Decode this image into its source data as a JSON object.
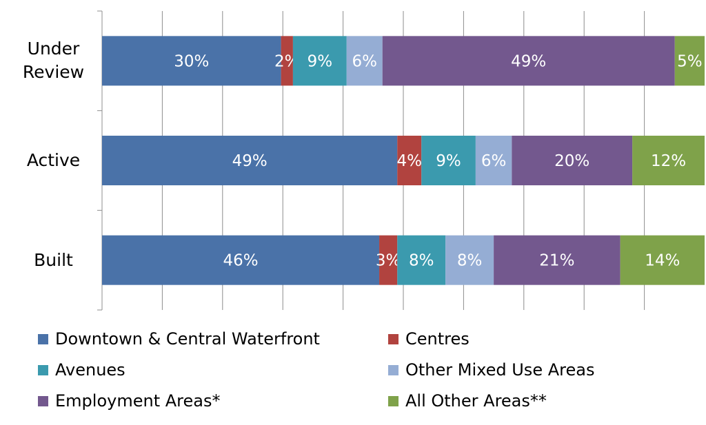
{
  "chart_data": {
    "type": "bar",
    "orientation": "horizontal",
    "stacked": true,
    "percent_stacked": true,
    "categories": [
      "Under\nReview",
      "Active",
      "Built"
    ],
    "xlim": [
      0,
      100
    ],
    "grid": true,
    "legend_position": "bottom",
    "series": [
      {
        "name": "Downtown & Central Waterfront",
        "color": "#4A72A8",
        "values": [
          30,
          49,
          46
        ],
        "labels": [
          "30%",
          "49%",
          "46%"
        ]
      },
      {
        "name": "Centres",
        "color": "#B1433F",
        "values": [
          2,
          4,
          3
        ],
        "labels": [
          "2%",
          "4%",
          "3%"
        ]
      },
      {
        "name": "Avenues",
        "color": "#3B9AAE",
        "values": [
          9,
          9,
          8
        ],
        "labels": [
          "9%",
          "9%",
          "8%"
        ]
      },
      {
        "name": "Other Mixed Use Areas",
        "color": "#95ADD4",
        "values": [
          6,
          6,
          8
        ],
        "labels": [
          "6%",
          "6%",
          "8%"
        ]
      },
      {
        "name": "Employment Areas*",
        "color": "#73588E",
        "values": [
          49,
          20,
          21
        ],
        "labels": [
          "49%",
          "20%",
          "21%"
        ]
      },
      {
        "name": "All Other Areas**",
        "color": "#7FA24A",
        "values": [
          5,
          12,
          14
        ],
        "labels": [
          "5%",
          "12%",
          "14%"
        ]
      }
    ]
  }
}
